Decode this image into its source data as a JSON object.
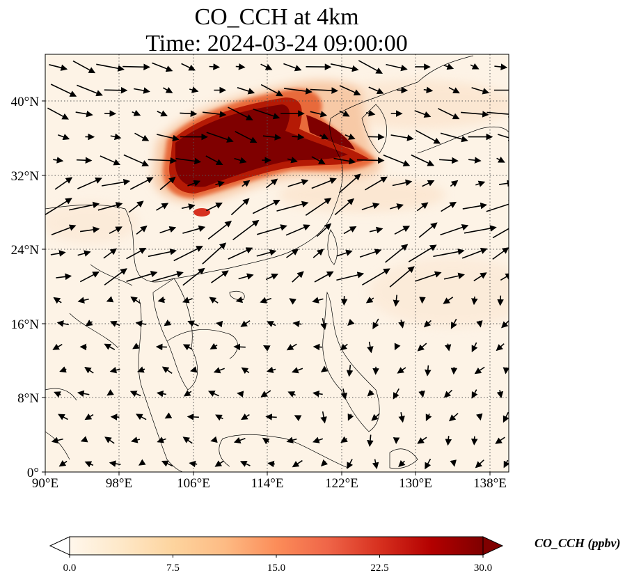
{
  "title": {
    "line1": "CO_CCH at 4km",
    "line2": "Time: 2024-03-24 09:00:00"
  },
  "axes": {
    "x_ticks": [
      "90°E",
      "98°E",
      "106°E",
      "114°E",
      "122°E",
      "130°E",
      "138°E"
    ],
    "y_ticks": [
      "0°",
      "8°N",
      "16°N",
      "24°N",
      "32°N",
      "40°N"
    ],
    "lon_range": [
      90,
      140
    ],
    "lat_range": [
      0,
      45
    ],
    "gridlines": "dotted"
  },
  "colorbar": {
    "label": "CO_CCH (ppbv)",
    "ticks": [
      "0.0",
      "7.5",
      "15.0",
      "22.5",
      "30.0"
    ],
    "range": [
      0,
      30
    ],
    "extend": "both",
    "colormap": [
      "#fff7ec",
      "#fee8c8",
      "#fdd49e",
      "#fdbb84",
      "#fc8d59",
      "#ef6548",
      "#d7301f",
      "#b30000",
      "#7f0000"
    ]
  },
  "map_content": {
    "background_color": "#fdf3e6",
    "plume_colors": [
      "#f7c9a6",
      "#e86a3a",
      "#b51a05",
      "#7f0000"
    ],
    "wind_vectors": "black-arrows"
  }
}
